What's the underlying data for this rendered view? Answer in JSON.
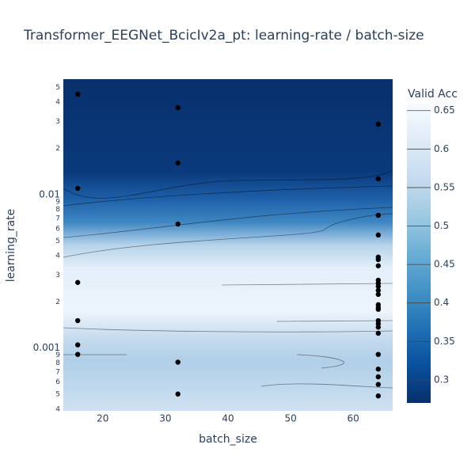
{
  "chart_data": {
    "type": "contour",
    "title": "Transformer_EEGNet_BcicIv2a_pt: learning-rate / batch-size",
    "x_label": "batch_size",
    "y_label": "learning_rate",
    "colorbar_title": "Valid Acc",
    "x": [
      16,
      16,
      16,
      16,
      16,
      16,
      32,
      32,
      32,
      32,
      32,
      64,
      64,
      64,
      64,
      64,
      64,
      64,
      64,
      64,
      64,
      64,
      64,
      64,
      64,
      64,
      64,
      64,
      64,
      64,
      64,
      64,
      64,
      64,
      64
    ],
    "y": [
      0.0452,
      0.011,
      0.00268,
      0.00151,
      0.00105,
      0.00091,
      0.0369,
      0.0161,
      0.00644,
      0.00081,
      0.000502,
      0.0288,
      0.0127,
      0.00734,
      0.00546,
      0.00392,
      0.00378,
      0.00344,
      0.00277,
      0.00265,
      0.00253,
      0.00238,
      0.00224,
      0.00192,
      0.00184,
      0.00179,
      0.00151,
      0.00144,
      0.00137,
      0.00125,
      0.00091,
      0.00073,
      0.00065,
      0.00058,
      0.000488
    ],
    "point_color": "#000000",
    "xlim": [
      13.7,
      66.3
    ],
    "xticks": [
      20,
      30,
      40,
      50,
      60
    ],
    "ylim": [
      0.00039,
      0.0566
    ],
    "log_y": true,
    "yticks": [
      {
        "value": 0.0004,
        "label": "4"
      },
      {
        "value": 0.0005,
        "label": "5"
      },
      {
        "value": 0.0006,
        "label": "6"
      },
      {
        "value": 0.0007,
        "label": "7"
      },
      {
        "value": 0.0008,
        "label": "8"
      },
      {
        "value": 0.0009,
        "label": "9"
      },
      0.001,
      {
        "value": 0.002,
        "label": "2"
      },
      {
        "value": 0.003,
        "label": "3"
      },
      {
        "value": 0.004,
        "label": "4"
      },
      {
        "value": 0.005,
        "label": "5"
      },
      {
        "value": 0.006,
        "label": "6"
      },
      {
        "value": 0.007,
        "label": "7"
      },
      {
        "value": 0.008,
        "label": "8"
      },
      {
        "value": 0.009,
        "label": "9"
      },
      0.01,
      {
        "value": 0.02,
        "label": "2"
      },
      {
        "value": 0.03,
        "label": "3"
      },
      {
        "value": 0.04,
        "label": "4"
      },
      {
        "value": 0.05,
        "label": "5"
      }
    ],
    "zlim": [
      0.27,
      0.659
    ],
    "zticks": [
      0.3,
      0.35,
      0.4,
      0.45,
      0.5,
      0.55,
      0.6,
      0.65
    ],
    "colorscale": [
      "#08306b",
      "#08519c",
      "#2171b5",
      "#4292c6",
      "#6baed6",
      "#9ecae1",
      "#c6dbef",
      "#deebf7",
      "#f7fbff"
    ]
  }
}
